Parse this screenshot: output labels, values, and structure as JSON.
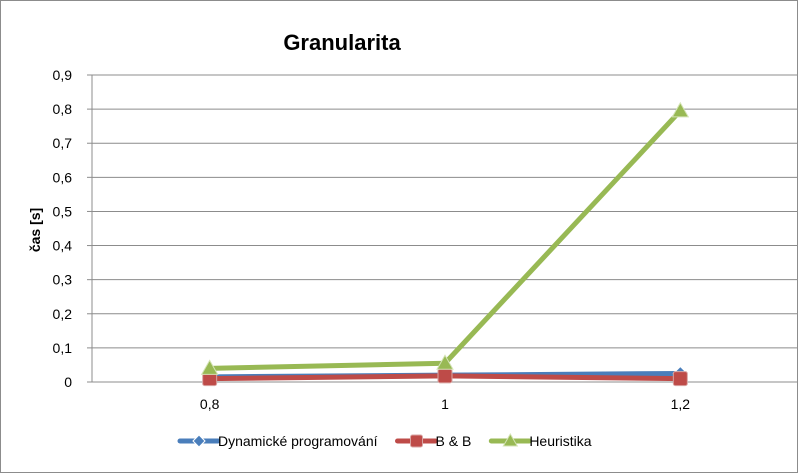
{
  "chart_data": {
    "type": "line",
    "title": "Granularita",
    "xlabel": "",
    "ylabel": "čas [s]",
    "categories": [
      "0,8",
      "1",
      "1,2"
    ],
    "ylim": [
      0,
      0.9
    ],
    "yticks": [
      "0",
      "0,1",
      "0,2",
      "0,3",
      "0,4",
      "0,5",
      "0,6",
      "0,7",
      "0,8",
      "0,9"
    ],
    "grid": true,
    "legend_position": "bottom",
    "series": [
      {
        "name": "Dynamické programování",
        "values": [
          0.015,
          0.02,
          0.025
        ],
        "color": "#4a7ebb",
        "marker": "diamond"
      },
      {
        "name": "B & B",
        "values": [
          0.01,
          0.018,
          0.01
        ],
        "color": "#be4b48",
        "marker": "square"
      },
      {
        "name": "Heuristika",
        "values": [
          0.04,
          0.055,
          0.795
        ],
        "color": "#98b954",
        "marker": "triangle"
      }
    ]
  }
}
